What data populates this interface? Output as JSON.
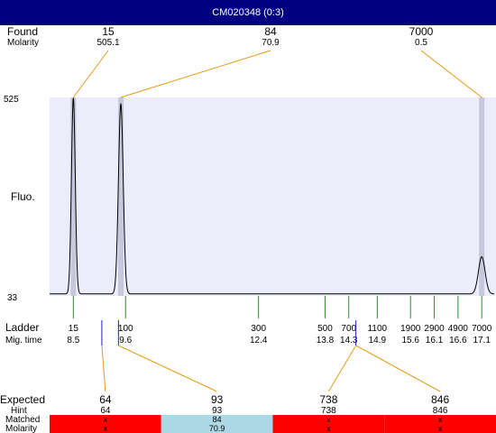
{
  "window": {
    "title": "CM020348 (0:3)"
  },
  "labels": {
    "found": "Found",
    "molarity": "Molarity",
    "fluo": "Fluo.",
    "ladder": "Ladder",
    "mig_time": "Mig. time",
    "expected": "Expected",
    "hint": "Hint",
    "matched": "Matched",
    "molarity_row": "Molarity"
  },
  "colors": {
    "title_bar": "#000080",
    "plot_bg": "#ececfb",
    "connector": "#e69a1a",
    "ladder_tick": "#2e8b2e",
    "hint_tick": "#1a1acc",
    "unmatched": "#ff0000",
    "matched": "#add8e6",
    "peak_band": "#c8c8dc"
  },
  "chart_data": {
    "type": "line",
    "title": "",
    "ylabel": "Fluo.",
    "y_ticks": [
      "525",
      "33"
    ],
    "ylim": [
      33,
      525
    ],
    "xlim": [
      8.0,
      17.4
    ],
    "grid": false,
    "baseline": 38,
    "peaks": [
      {
        "mig_time": 8.5,
        "height": 525,
        "width": 0.04
      },
      {
        "mig_time": 9.5,
        "height": 510,
        "width": 0.05
      },
      {
        "mig_time": 17.1,
        "height": 130,
        "width": 0.07
      }
    ],
    "found": [
      {
        "size": "15",
        "molarity": "505.1",
        "mig_time": 8.5
      },
      {
        "size": "84",
        "molarity": "70.9",
        "mig_time": 9.5
      },
      {
        "size": "7000",
        "molarity": "0.5",
        "mig_time": 17.1
      }
    ],
    "ladder": [
      {
        "size": "15",
        "mig_time": "8.5",
        "t": 8.5
      },
      {
        "size": "100",
        "mig_time": "9.6",
        "t": 9.6
      },
      {
        "size": "300",
        "mig_time": "12.4",
        "t": 12.4
      },
      {
        "size": "500",
        "mig_time": "13.8",
        "t": 13.8
      },
      {
        "size": "700",
        "mig_time": "14.3",
        "t": 14.3
      },
      {
        "size": "1100",
        "mig_time": "14.9",
        "t": 14.9
      },
      {
        "size": "1900",
        "mig_time": "15.6",
        "t": 15.6
      },
      {
        "size": "2900",
        "mig_time": "16.1",
        "t": 16.1
      },
      {
        "size": "4900",
        "mig_time": "16.6",
        "t": 16.6
      },
      {
        "size": "7000",
        "mig_time": "17.1",
        "t": 17.1
      }
    ],
    "hint_markers": [
      {
        "mig_time": 9.1
      },
      {
        "mig_time": 9.45
      },
      {
        "mig_time": 14.45
      }
    ],
    "expected": [
      {
        "size": "64",
        "hint": "64",
        "matched": "x",
        "molarity": "x",
        "status": "unmatched",
        "hint_index": 0
      },
      {
        "size": "93",
        "hint": "93",
        "matched": "84",
        "molarity": "70.9",
        "status": "matched",
        "hint_index": 1
      },
      {
        "size": "738",
        "hint": "738",
        "matched": "x",
        "molarity": "x",
        "status": "unmatched",
        "hint_index": 2
      },
      {
        "size": "846",
        "hint": "846",
        "matched": "x",
        "molarity": "x",
        "status": "unmatched",
        "hint_index": 2
      }
    ]
  }
}
